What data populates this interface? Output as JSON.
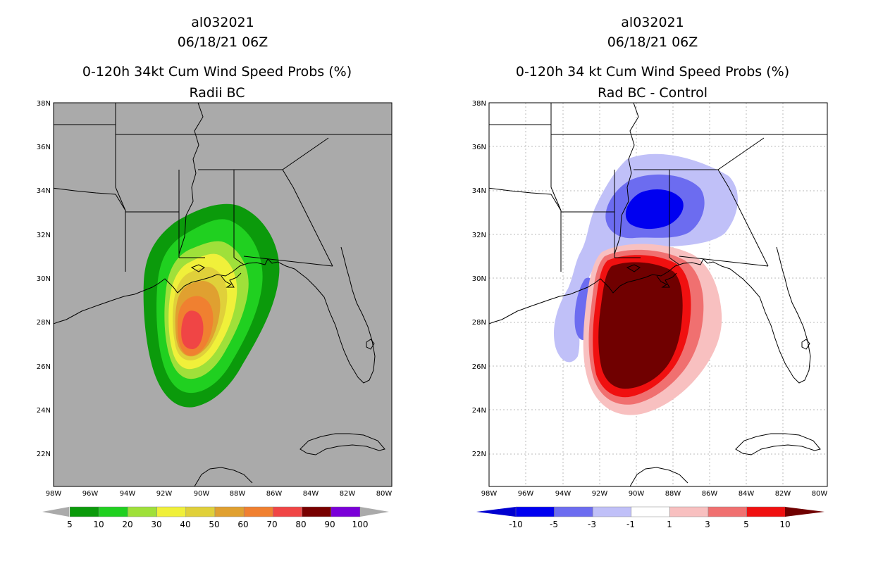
{
  "left_panel": {
    "title_line1": "al032021",
    "title_line2": "06/18/21 06Z",
    "title_line3": "0-120h 34kt Cum Wind Speed Probs (%)",
    "title_line4": "Radii BC",
    "lat_labels": [
      "38N",
      "36N",
      "34N",
      "32N",
      "30N",
      "28N",
      "26N",
      "24N",
      "22N"
    ],
    "lon_labels": [
      "98W",
      "96W",
      "94W",
      "92W",
      "90W",
      "88W",
      "86W",
      "84W",
      "82W",
      "80W"
    ],
    "colorbar_labels": [
      "5",
      "10",
      "20",
      "30",
      "40",
      "50",
      "60",
      "70",
      "80",
      "90",
      "100"
    ],
    "colorbar_colors": [
      "#0b9a0b",
      "#20d020",
      "#9fe03a",
      "#f0f03a",
      "#e0d03a",
      "#e0a030",
      "#f08030",
      "#f04545",
      "#780000",
      "#7a00d8"
    ]
  },
  "right_panel": {
    "title_line1": "al032021",
    "title_line2": "06/18/21 06Z",
    "title_line3": "0-120h 34 kt Cum Wind Speed Probs (%)",
    "title_line4": "Rad BC - Control",
    "lat_labels": [
      "38N",
      "36N",
      "34N",
      "32N",
      "30N",
      "28N",
      "26N",
      "24N",
      "22N"
    ],
    "lon_labels": [
      "98W",
      "96W",
      "94W",
      "92W",
      "90W",
      "88W",
      "86W",
      "84W",
      "82W",
      "80W"
    ],
    "colorbar_labels": [
      "-10",
      "-5",
      "-3",
      "-1",
      "1",
      "3",
      "5",
      "10"
    ],
    "colorbar_colors": [
      "#0000d0",
      "#0000f0",
      "#6c6cf0",
      "#c0c0f8",
      "#ffffff",
      "#f8c0c0",
      "#f07070",
      "#f01010",
      "#700000"
    ]
  }
}
